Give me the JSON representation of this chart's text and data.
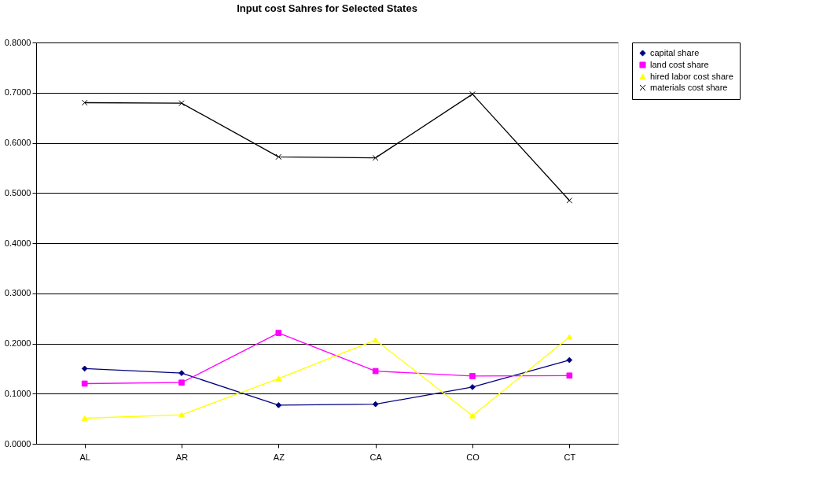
{
  "chart_data": {
    "type": "line",
    "title": "Input cost Sahres for Selected States",
    "categories": [
      "AL",
      "AR",
      "AZ",
      "CA",
      "CO",
      "CT"
    ],
    "series": [
      {
        "name": "capital share",
        "color": "#000080",
        "marker": "diamond",
        "values": [
          0.15,
          0.141,
          0.077,
          0.079,
          0.113,
          0.167
        ]
      },
      {
        "name": "land cost share",
        "color": "#ff00ff",
        "marker": "square",
        "values": [
          0.12,
          0.122,
          0.221,
          0.145,
          0.135,
          0.136
        ]
      },
      {
        "name": "hired labor cost share",
        "color": "#ffff00",
        "marker": "triangle",
        "values": [
          0.051,
          0.058,
          0.13,
          0.207,
          0.056,
          0.213
        ]
      },
      {
        "name": "materials cost share",
        "color": "#000000",
        "marker": "cross",
        "values": [
          0.68,
          0.679,
          0.572,
          0.57,
          0.697,
          0.485
        ]
      }
    ],
    "ylim": [
      0,
      0.8
    ],
    "yticks": [
      {
        "value": 0,
        "label": "0.0000"
      },
      {
        "value": 0.1,
        "label": "0.1000"
      },
      {
        "value": 0.2,
        "label": "0.2000"
      },
      {
        "value": 0.3,
        "label": "0.3000"
      },
      {
        "value": 0.4,
        "label": "0.4000"
      },
      {
        "value": 0.5,
        "label": "0.5000"
      },
      {
        "value": 0.6,
        "label": "0.6000"
      },
      {
        "value": 0.7,
        "label": "0.7000"
      },
      {
        "value": 0.8,
        "label": "0.8000"
      }
    ],
    "grid": "y",
    "legend": "right"
  }
}
